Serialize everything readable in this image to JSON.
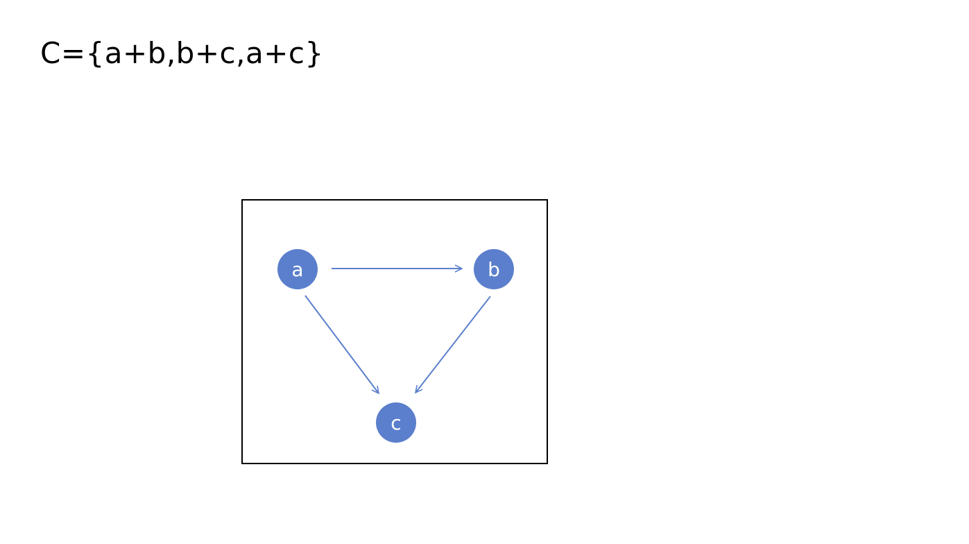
{
  "set_definition": "C={a+b,b+c,a+c}",
  "colors": {
    "node_fill": "#5B7FCC",
    "edge_stroke": "#5B7FCC",
    "frame_border": "#000000"
  },
  "graph": {
    "nodes": [
      {
        "id": "a",
        "label": "a"
      },
      {
        "id": "b",
        "label": "b"
      },
      {
        "id": "c",
        "label": "c"
      }
    ],
    "edges": [
      {
        "from": "a",
        "to": "b"
      },
      {
        "from": "a",
        "to": "c"
      },
      {
        "from": "b",
        "to": "c"
      }
    ]
  }
}
